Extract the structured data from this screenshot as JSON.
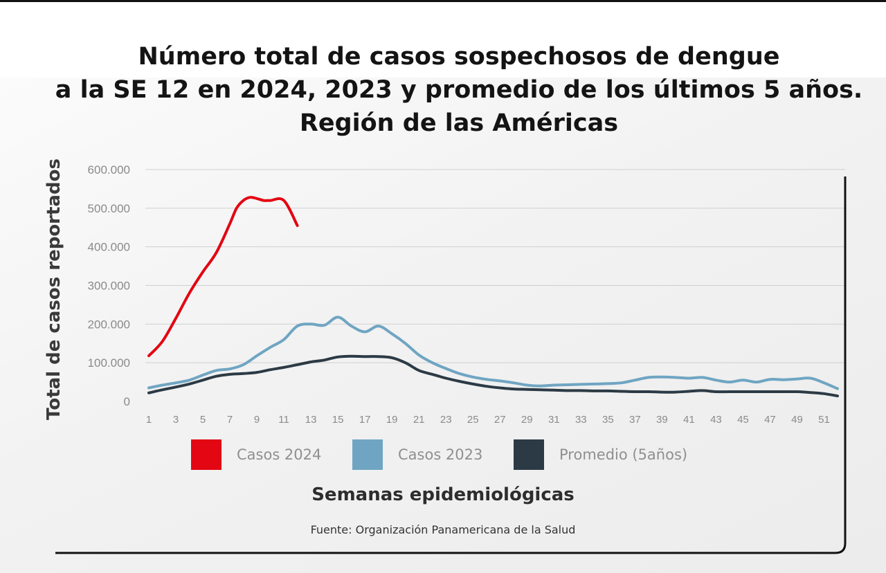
{
  "chart_data": {
    "type": "line",
    "title": [
      "Número total de casos sospechosos de dengue",
      "a la SE 12 en 2024, 2023 y promedio de los últimos 5 años.",
      "Región de las Américas"
    ],
    "xlabel": "Semanas epidemiológicas",
    "ylabel": "Total de casos reportados",
    "source": "Fuente: Organización Panamericana de la Salud",
    "xlim": [
      1,
      52
    ],
    "ylim": [
      0,
      600000
    ],
    "yticks": [
      0,
      100000,
      200000,
      300000,
      400000,
      500000,
      600000
    ],
    "ytick_labels": [
      "0",
      "100.000",
      "200.000",
      "300.000",
      "400.000",
      "500.000",
      "600.000"
    ],
    "xticks": [
      1,
      3,
      5,
      7,
      9,
      11,
      13,
      15,
      17,
      19,
      21,
      23,
      25,
      27,
      29,
      31,
      33,
      35,
      37,
      39,
      41,
      43,
      45,
      47,
      49,
      51
    ],
    "xtick_labels": [
      "1",
      "3",
      "5",
      "7",
      "9",
      "11",
      "13",
      "15",
      "17",
      "19",
      "21",
      "23",
      "25",
      "27",
      "29",
      "31",
      "33",
      "35",
      "37",
      "39",
      "41",
      "43",
      "45",
      "47",
      "49",
      "51"
    ],
    "grid": true,
    "legend_position": "bottom",
    "series": [
      {
        "name": "Casos 2024",
        "color": "#e30613",
        "x": [
          1,
          2,
          3,
          4,
          5,
          6,
          7,
          7.5,
          8,
          8.5,
          9,
          9.5,
          10,
          11,
          12
        ],
        "values": [
          118000,
          155000,
          215000,
          280000,
          335000,
          385000,
          460000,
          500000,
          520000,
          528000,
          525000,
          520000,
          520000,
          520000,
          455000
        ]
      },
      {
        "name": "Casos 2023",
        "color": "#6fa5c2",
        "x": [
          1,
          2,
          3,
          4,
          5,
          6,
          7,
          8,
          9,
          10,
          11,
          12,
          13,
          14,
          15,
          16,
          17,
          18,
          19,
          20,
          21,
          22,
          23,
          24,
          25,
          26,
          27,
          28,
          29,
          30,
          31,
          32,
          33,
          34,
          35,
          36,
          37,
          38,
          39,
          40,
          41,
          42,
          43,
          44,
          45,
          46,
          47,
          48,
          49,
          50,
          51,
          52
        ],
        "values": [
          35000,
          42000,
          48000,
          55000,
          68000,
          80000,
          84000,
          95000,
          118000,
          140000,
          160000,
          195000,
          200000,
          197000,
          218000,
          195000,
          180000,
          195000,
          175000,
          150000,
          120000,
          100000,
          85000,
          72000,
          63000,
          57000,
          53000,
          48000,
          42000,
          40000,
          42000,
          43000,
          44000,
          45000,
          46000,
          48000,
          55000,
          62000,
          63000,
          62000,
          60000,
          62000,
          55000,
          50000,
          55000,
          50000,
          57000,
          56000,
          58000,
          60000,
          48000,
          33000
        ]
      },
      {
        "name": "Promedio (5años)",
        "color": "#2c3a45",
        "x": [
          1,
          2,
          3,
          4,
          5,
          6,
          7,
          8,
          9,
          10,
          11,
          12,
          13,
          14,
          15,
          16,
          17,
          18,
          19,
          20,
          21,
          22,
          23,
          24,
          25,
          26,
          27,
          28,
          29,
          30,
          31,
          32,
          33,
          34,
          35,
          36,
          37,
          38,
          39,
          40,
          41,
          42,
          43,
          44,
          45,
          46,
          47,
          48,
          49,
          50,
          51,
          52
        ],
        "values": [
          22000,
          30000,
          37000,
          45000,
          55000,
          65000,
          70000,
          72000,
          75000,
          82000,
          88000,
          95000,
          102000,
          107000,
          115000,
          117000,
          116000,
          116000,
          113000,
          100000,
          80000,
          70000,
          60000,
          52000,
          45000,
          39000,
          35000,
          32000,
          31000,
          30000,
          29000,
          28000,
          28000,
          27000,
          27000,
          26000,
          25000,
          25000,
          24000,
          24000,
          26000,
          28000,
          25000,
          25000,
          25000,
          25000,
          25000,
          25000,
          25000,
          23000,
          20000,
          14000
        ]
      }
    ]
  }
}
